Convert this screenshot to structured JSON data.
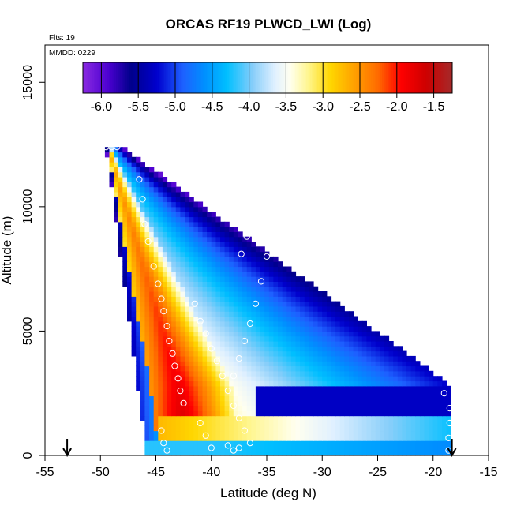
{
  "chart_data": {
    "type": "heatmap",
    "title": "ORCAS RF19 PLWCD_LWI (Log)",
    "flights_note": "Flts: 19",
    "date_note": "MMDD: 0229",
    "xlabel": "Latitude (deg N)",
    "ylabel": "Altitude (m)",
    "xlim": [
      -55,
      -15
    ],
    "ylim": [
      0,
      16500
    ],
    "x_ticks": [
      -55,
      -50,
      -45,
      -40,
      -35,
      -30,
      -25,
      -20,
      -15
    ],
    "x_tick_labels": [
      "-55",
      "-50",
      "-45",
      "-40",
      "-35",
      "-30",
      "-25",
      "-20",
      "-15"
    ],
    "y_ticks": [
      0,
      5000,
      10000,
      15000
    ],
    "y_tick_labels": [
      "0",
      "5000",
      "10000",
      "15000"
    ],
    "colorbar": {
      "min": -6.25,
      "max": -1.25,
      "ticks": [
        -6.0,
        -5.5,
        -5.0,
        -4.5,
        -4.0,
        -3.5,
        -3.0,
        -2.5,
        -2.0,
        -1.5
      ],
      "tick_labels": [
        "-6.0",
        "-5.5",
        "-5.0",
        "-4.5",
        "-4.0",
        "-3.5",
        "-3.0",
        "-2.5",
        "-2.0",
        "-1.5"
      ],
      "stops": [
        {
          "v": -6.25,
          "c": "#8a2be2"
        },
        {
          "v": -5.9,
          "c": "#4b00d0"
        },
        {
          "v": -5.6,
          "c": "#00008b"
        },
        {
          "v": -5.25,
          "c": "#0000cd"
        },
        {
          "v": -4.9,
          "c": "#1e60ff"
        },
        {
          "v": -4.6,
          "c": "#0090ff"
        },
        {
          "v": -4.3,
          "c": "#00bfff"
        },
        {
          "v": -3.95,
          "c": "#87cefa"
        },
        {
          "v": -3.65,
          "c": "#e0f0ff"
        },
        {
          "v": -3.45,
          "c": "#fffff0"
        },
        {
          "v": -3.2,
          "c": "#fff68f"
        },
        {
          "v": -2.9,
          "c": "#ffd700"
        },
        {
          "v": -2.6,
          "c": "#ffa500"
        },
        {
          "v": -2.25,
          "c": "#ff6a00"
        },
        {
          "v": -1.95,
          "c": "#ff0000"
        },
        {
          "v": -1.6,
          "c": "#cd0000"
        },
        {
          "v": -1.25,
          "c": "#a52a2a"
        }
      ]
    },
    "curtain": {
      "top_alt": 12400,
      "apex_lat": -49.5,
      "left_edge_lat_at_ground": -45.8,
      "right_edge_alt_at_lat_minus18": 2800,
      "right_end_lat": -18.3,
      "bottom_alt": 0
    },
    "markers": {
      "arrows_lat": [
        -53,
        -18.3
      ],
      "sample_points": [
        {
          "lat": -49.0,
          "alt": 12400
        },
        {
          "lat": -48.5,
          "alt": 12400
        },
        {
          "lat": -49.5,
          "alt": 12400
        },
        {
          "lat": -46.5,
          "alt": 11100
        },
        {
          "lat": -46.2,
          "alt": 10300
        },
        {
          "lat": -46.0,
          "alt": 9300
        },
        {
          "lat": -45.7,
          "alt": 8600
        },
        {
          "lat": -45.2,
          "alt": 7600
        },
        {
          "lat": -44.8,
          "alt": 6900
        },
        {
          "lat": -44.5,
          "alt": 6300
        },
        {
          "lat": -44.3,
          "alt": 5800
        },
        {
          "lat": -44.0,
          "alt": 5200
        },
        {
          "lat": -43.8,
          "alt": 4600
        },
        {
          "lat": -43.5,
          "alt": 4100
        },
        {
          "lat": -43.3,
          "alt": 3600
        },
        {
          "lat": -43.0,
          "alt": 3100
        },
        {
          "lat": -42.8,
          "alt": 2600
        },
        {
          "lat": -42.5,
          "alt": 2100
        },
        {
          "lat": -41.5,
          "alt": 6100
        },
        {
          "lat": -41.0,
          "alt": 5400
        },
        {
          "lat": -40.5,
          "alt": 4900
        },
        {
          "lat": -40.0,
          "alt": 4300
        },
        {
          "lat": -39.5,
          "alt": 3800
        },
        {
          "lat": -39.0,
          "alt": 3200
        },
        {
          "lat": -38.5,
          "alt": 2600
        },
        {
          "lat": -38.0,
          "alt": 2000
        },
        {
          "lat": -37.5,
          "alt": 1500
        },
        {
          "lat": -37.0,
          "alt": 1000
        },
        {
          "lat": -36.5,
          "alt": 500
        },
        {
          "lat": -35.0,
          "alt": 8000
        },
        {
          "lat": -35.5,
          "alt": 7000
        },
        {
          "lat": -36.0,
          "alt": 6100
        },
        {
          "lat": -36.5,
          "alt": 5300
        },
        {
          "lat": -37.0,
          "alt": 4600
        },
        {
          "lat": -37.5,
          "alt": 3900
        },
        {
          "lat": -38.0,
          "alt": 3200
        },
        {
          "lat": -36.8,
          "alt": 8800
        },
        {
          "lat": -37.3,
          "alt": 8100
        },
        {
          "lat": -44.5,
          "alt": 1000
        },
        {
          "lat": -44.3,
          "alt": 500
        },
        {
          "lat": -44.0,
          "alt": 200
        },
        {
          "lat": -41.0,
          "alt": 1300
        },
        {
          "lat": -40.5,
          "alt": 800
        },
        {
          "lat": -40.0,
          "alt": 300
        },
        {
          "lat": -38.5,
          "alt": 400
        },
        {
          "lat": -38.0,
          "alt": 200
        },
        {
          "lat": -37.5,
          "alt": 300
        },
        {
          "lat": -19.0,
          "alt": 2500
        },
        {
          "lat": -18.5,
          "alt": 1900
        },
        {
          "lat": -18.5,
          "alt": 1300
        },
        {
          "lat": -18.6,
          "alt": 700
        },
        {
          "lat": -18.6,
          "alt": 200
        }
      ]
    },
    "colors": {
      "frame": "#000000",
      "marker_stroke": "#ffffff",
      "background": "#ffffff"
    }
  }
}
